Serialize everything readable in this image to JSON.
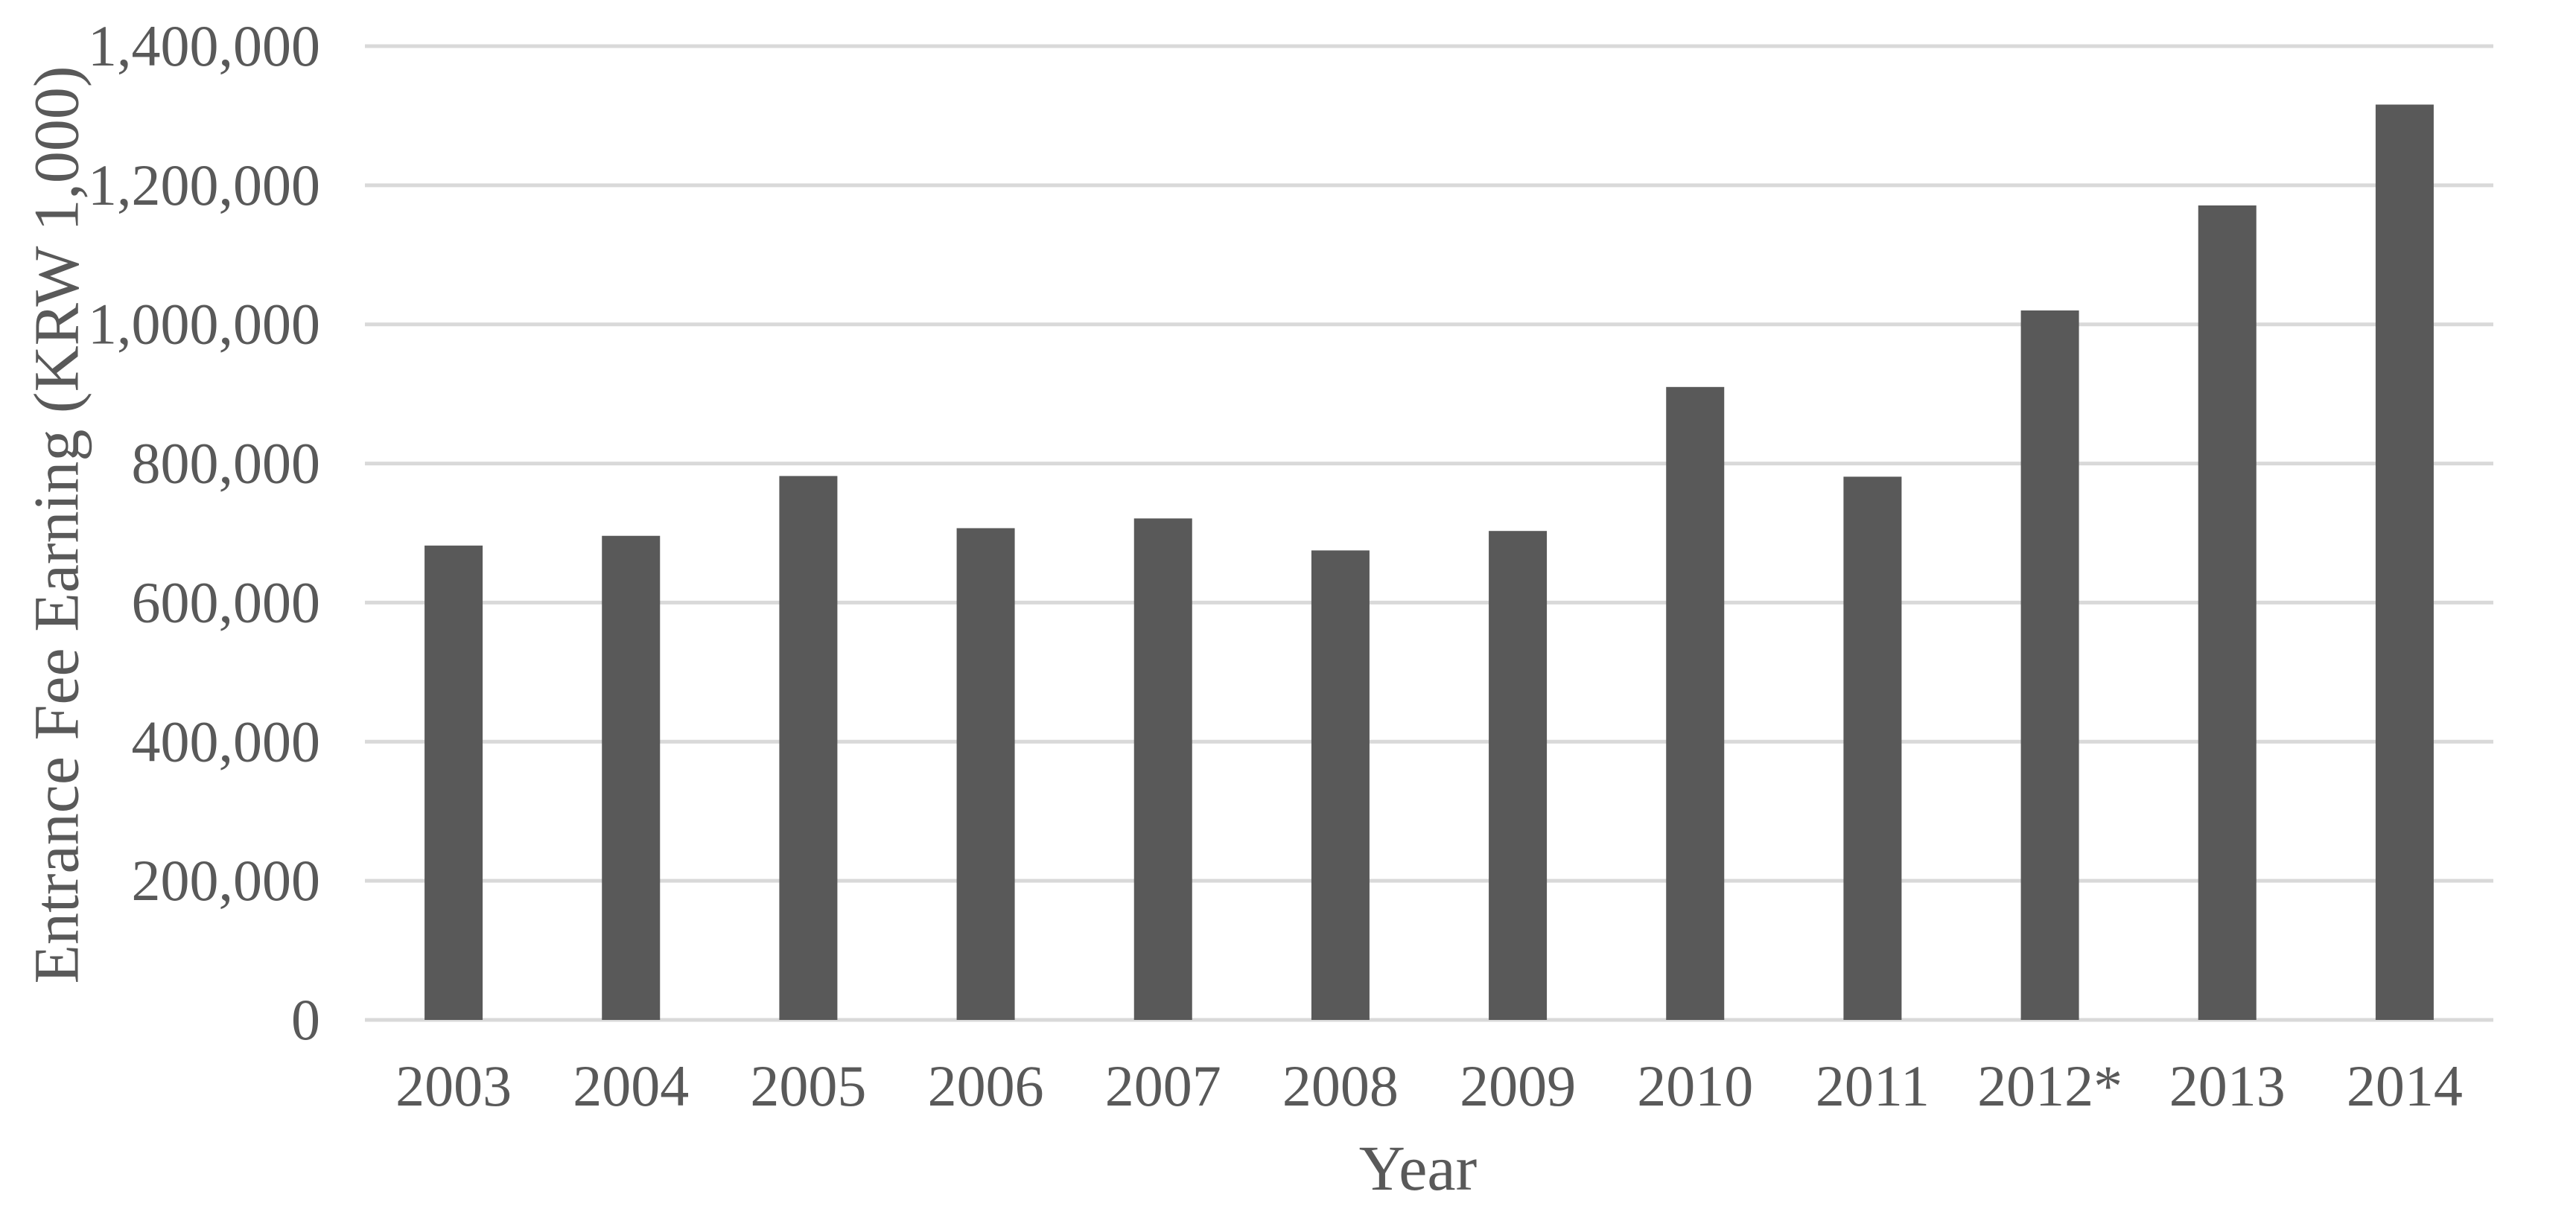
{
  "chart_data": {
    "type": "bar",
    "title": "",
    "xlabel": "Year",
    "ylabel": "Entrance Fee Earning (KRW 1,000)",
    "categories": [
      "2003",
      "2004",
      "2005",
      "2006",
      "2007",
      "2008",
      "2009",
      "2010",
      "2011",
      "2012*",
      "2013",
      "2014"
    ],
    "values": [
      682000,
      696000,
      782000,
      707000,
      721000,
      675000,
      703000,
      910000,
      781000,
      1020000,
      1171000,
      1316000
    ],
    "ylim": [
      0,
      1400000
    ],
    "yticks": [
      0,
      200000,
      400000,
      600000,
      800000,
      1000000,
      1200000,
      1400000
    ],
    "ytick_labels": [
      "0",
      "200,000",
      "400,000",
      "600,000",
      "800,000",
      "1,000,000",
      "1,200,000",
      "1,400,000"
    ],
    "grid": true,
    "legend": "none",
    "bar_color": "#595959",
    "grid_color": "#d9d9d9",
    "text_color": "#595959"
  }
}
